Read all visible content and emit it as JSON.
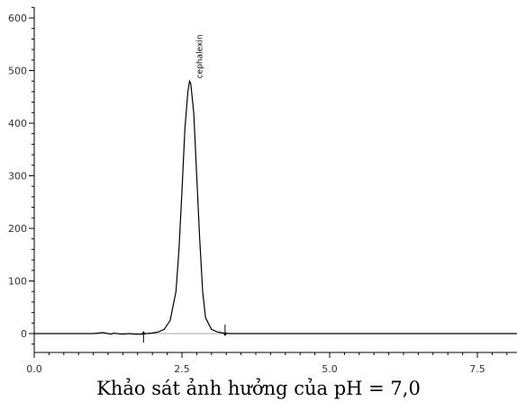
{
  "caption": "Khảo sát ảnh hưởng của pH = 7,0",
  "chart_data": {
    "type": "line",
    "title": "",
    "xlabel": "",
    "ylabel": "",
    "xlim": [
      0.0,
      8.3
    ],
    "ylim": [
      -40,
      620
    ],
    "x_ticks": [
      0.0,
      2.5,
      5.0,
      7.5
    ],
    "x_tick_labels": [
      "0.0",
      "2.5",
      "5.0",
      "7.5"
    ],
    "y_ticks": [
      0,
      100,
      200,
      300,
      400,
      500,
      600
    ],
    "y_tick_labels": [
      "0",
      "100",
      "200",
      "300",
      "400",
      "500",
      "600"
    ],
    "grid": false,
    "series": [
      {
        "color": "#000000",
        "x": [
          0.0,
          1.0,
          1.1,
          1.15,
          1.2,
          1.3,
          1.35,
          1.4,
          1.5,
          1.6,
          1.7,
          1.8,
          1.9,
          2.0,
          2.1,
          2.2,
          2.3,
          2.4,
          2.45,
          2.5,
          2.55,
          2.6,
          2.63,
          2.65,
          2.7,
          2.75,
          2.8,
          2.85,
          2.9,
          3.0,
          3.1,
          3.2,
          3.3,
          4.0,
          5.0,
          6.0,
          7.0,
          8.3
        ],
        "values": [
          0,
          0,
          1,
          2,
          1,
          -1,
          1,
          0,
          -1,
          0,
          -1,
          -1,
          0,
          1,
          3,
          8,
          25,
          80,
          160,
          270,
          390,
          460,
          480,
          475,
          420,
          300,
          180,
          80,
          30,
          8,
          3,
          1,
          0,
          0,
          0,
          0,
          0,
          0
        ]
      }
    ],
    "annotations": [
      {
        "text": "cephalexin",
        "x": 2.63,
        "y": 485,
        "orientation": "vertical"
      }
    ],
    "markers": [
      {
        "type": "arrow-up",
        "x": 1.85,
        "y": 0
      },
      {
        "type": "arrow-down",
        "x": 3.23,
        "y": 0
      }
    ]
  }
}
